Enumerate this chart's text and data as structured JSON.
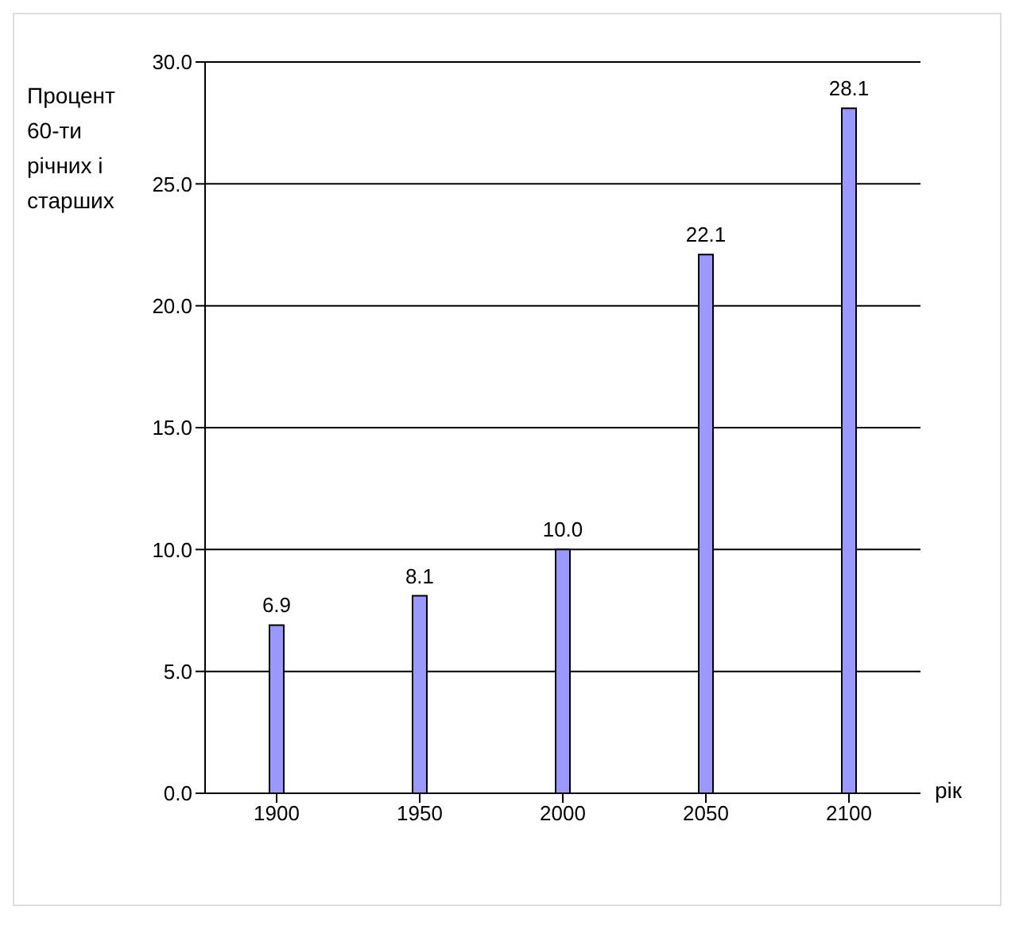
{
  "chart_data": {
    "type": "bar",
    "ylabel": "Процент 60-ти річних і старших",
    "xlabel": "рік",
    "categories": [
      "1900",
      "1950",
      "2000",
      "2050",
      "2100"
    ],
    "values": [
      6.9,
      8.1,
      10.0,
      22.1,
      28.1
    ],
    "value_labels": [
      "6.9",
      "8.1",
      "10.0",
      "22.1",
      "28.1"
    ],
    "color": "#9999ff",
    "ylim": [
      0,
      30
    ],
    "yticks": [
      {
        "value": 0,
        "label": "0.0"
      },
      {
        "value": 5,
        "label": "5.0"
      },
      {
        "value": 10,
        "label": "10.0"
      },
      {
        "value": 15,
        "label": "15.0"
      },
      {
        "value": 20,
        "label": "20.0"
      },
      {
        "value": 25,
        "label": "25.0"
      },
      {
        "value": 30,
        "label": "30.0"
      }
    ],
    "grid": "y",
    "legend": false
  }
}
